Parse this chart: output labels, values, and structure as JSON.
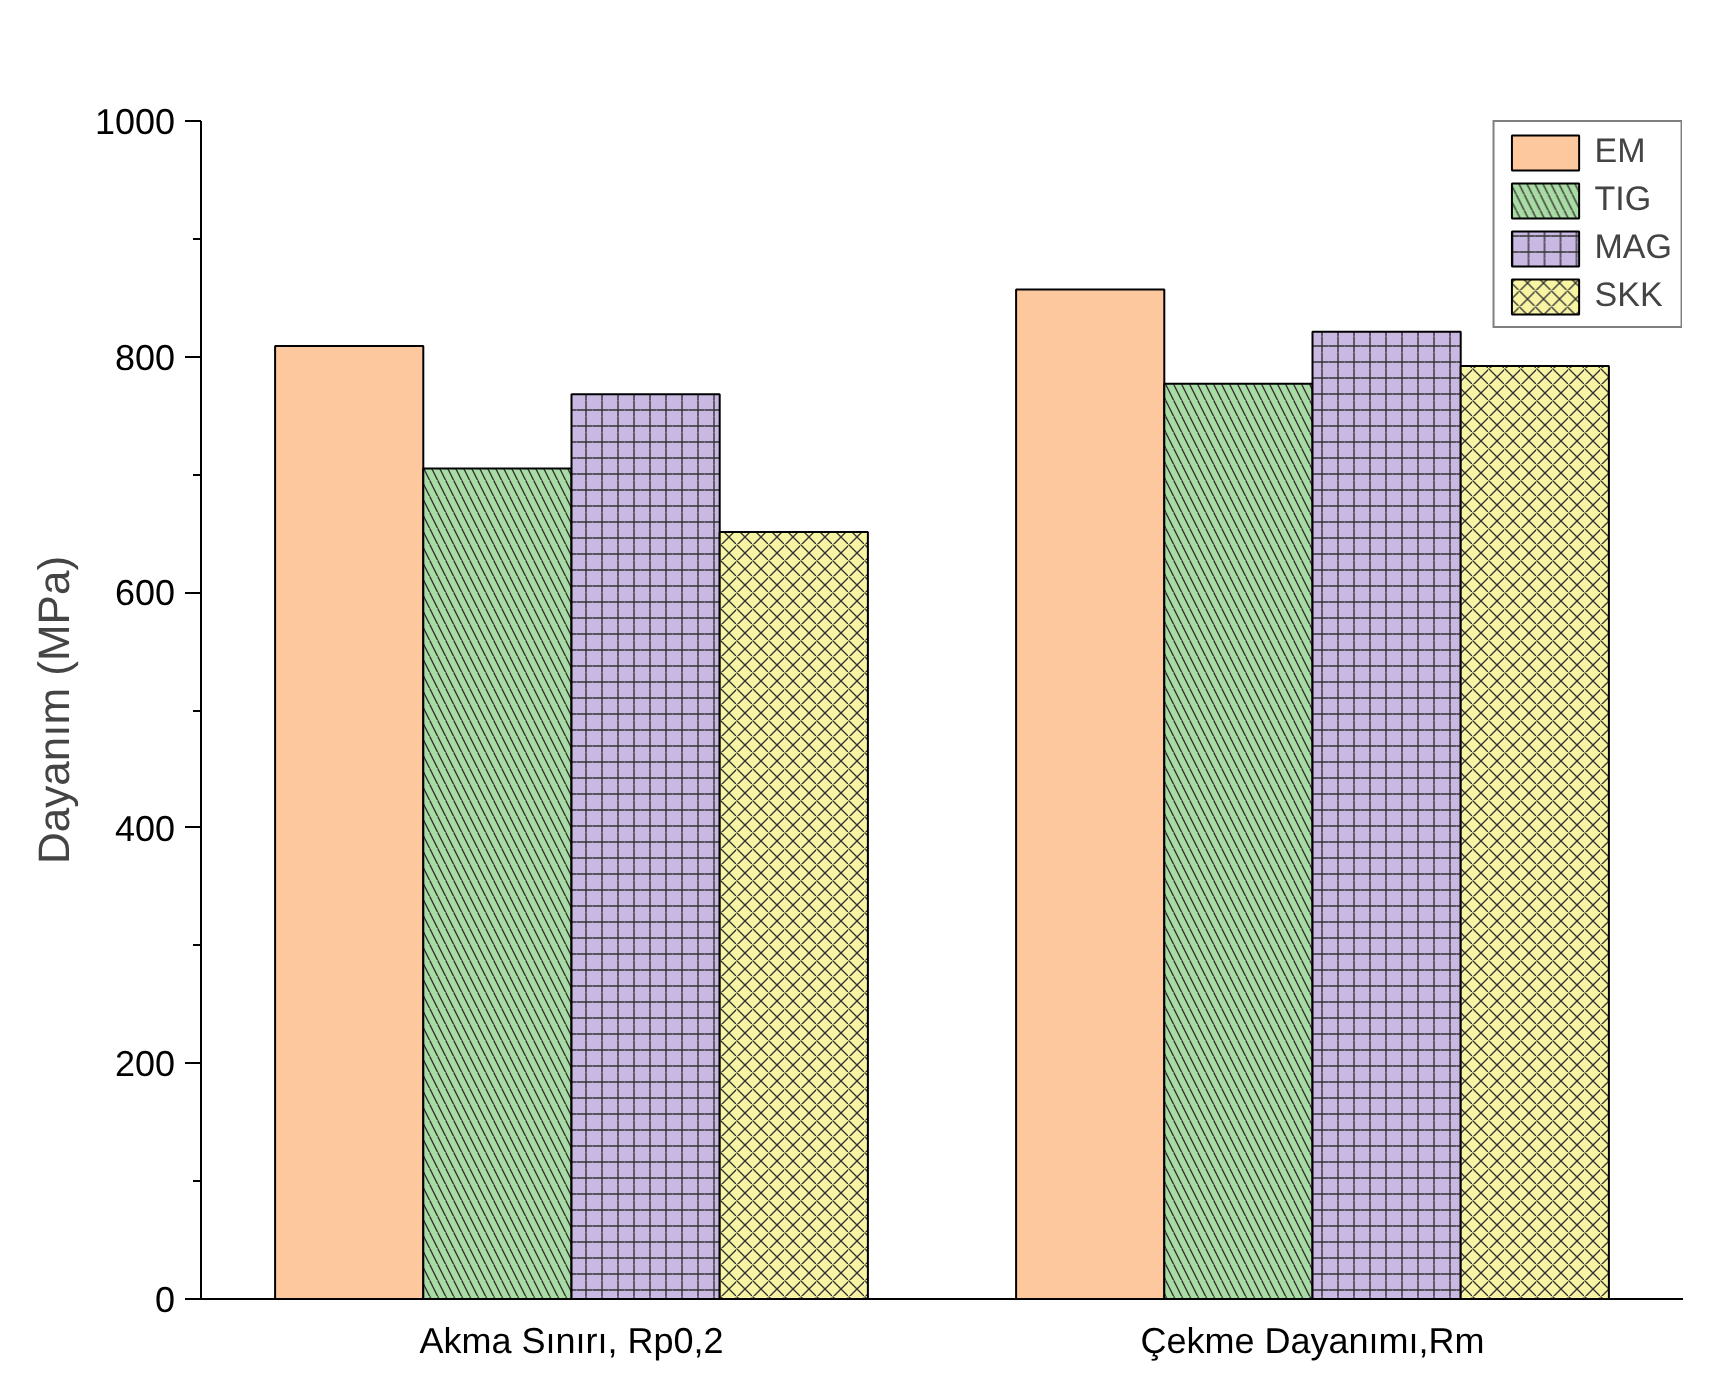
{
  "chart_data": {
    "type": "bar",
    "ylabel": "Dayanım (MPa)",
    "categories": [
      "Akma Sınırı, Rp0,2",
      "Çekme Dayanımı,Rm"
    ],
    "series": [
      {
        "name": "EM",
        "color": "#fdc89e",
        "values": [
          809,
          857
        ]
      },
      {
        "name": "TIG",
        "color": "#a9dba4",
        "values": [
          705,
          777
        ]
      },
      {
        "name": "MAG",
        "color": "#c9b8e2",
        "values": [
          768,
          821
        ]
      },
      {
        "name": "SKK",
        "color": "#f7f4a3",
        "values": [
          651,
          792
        ]
      }
    ],
    "ylim": [
      0,
      1000
    ],
    "yticks": [
      0,
      200,
      400,
      600,
      800,
      1000
    ],
    "grid": false,
    "legend": "top right"
  }
}
